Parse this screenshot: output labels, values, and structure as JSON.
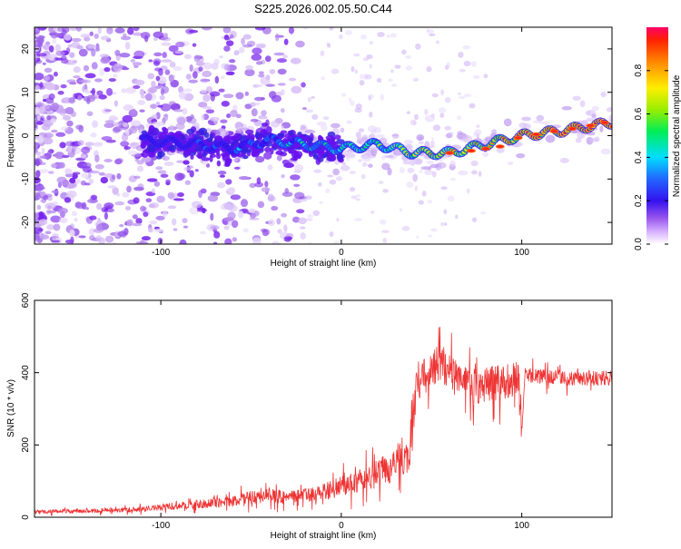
{
  "title": "S225.2026.002.05.50.C44",
  "chart_data": [
    {
      "type": "heatmap",
      "xlabel": "Height of straight line (km)",
      "ylabel": "Frequency (Hz)",
      "xlim": [
        -170,
        150
      ],
      "ylim": [
        -25,
        25
      ],
      "x_ticks": [
        -100,
        0,
        100
      ],
      "y_ticks": [
        -20,
        -10,
        0,
        10,
        20
      ],
      "colorbar": {
        "label": "Normalized spectral amplitude",
        "range": [
          0,
          1
        ],
        "ticks": [
          0.0,
          0.2,
          0.4,
          0.6,
          0.8
        ]
      },
      "ridge": {
        "x": [
          -110,
          -80,
          -60,
          -40,
          -20,
          0,
          20,
          40,
          60,
          80,
          100,
          120,
          150
        ],
        "y": [
          -1,
          -2,
          -3,
          -1,
          -2,
          -3,
          -2,
          -4,
          -4,
          -2,
          0,
          1,
          3
        ]
      }
    },
    {
      "type": "line",
      "xlabel": "Height of straight line (km)",
      "ylabel": "SNR (10 * v/v)",
      "xlim": [
        -170,
        150
      ],
      "ylim": [
        0,
        600
      ],
      "x_ticks": [
        -100,
        0,
        100
      ],
      "y_ticks": [
        0,
        200,
        400,
        600
      ],
      "series": [
        {
          "name": "SNR",
          "color": "#ee3333",
          "x": [
            -170,
            -140,
            -110,
            -100,
            -80,
            -60,
            -50,
            -40,
            -30,
            -20,
            -10,
            0,
            10,
            20,
            30,
            38,
            40,
            42,
            50,
            55,
            60,
            70,
            80,
            90,
            98,
            100,
            102,
            110,
            120,
            130,
            150
          ],
          "y": [
            15,
            18,
            22,
            28,
            35,
            45,
            55,
            60,
            55,
            60,
            70,
            85,
            100,
            120,
            150,
            185,
            290,
            380,
            400,
            430,
            400,
            360,
            360,
            380,
            390,
            250,
            395,
            390,
            385,
            385,
            385
          ]
        }
      ]
    }
  ]
}
